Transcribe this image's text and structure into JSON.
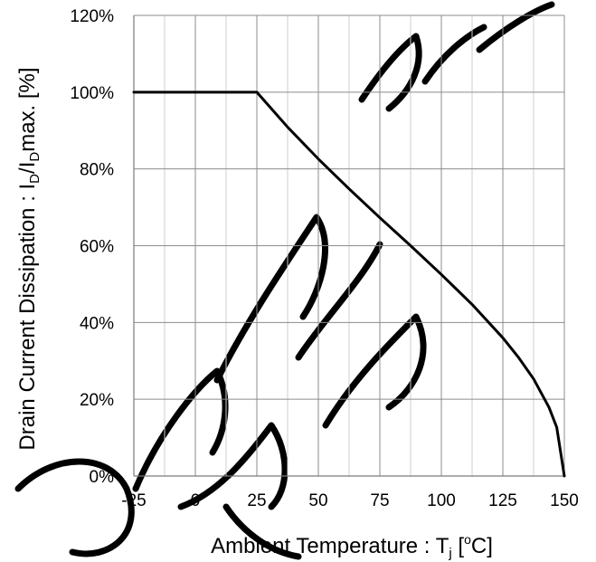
{
  "chart_data": {
    "type": "line",
    "title": "",
    "xlabel": "Ambient Temperature : Tj [°C]",
    "ylabel": "Drain Current Dissipation : ID/IDmax. [%]",
    "xlabel_parts": {
      "pre": "Ambient Temperature : T",
      "sub": "j",
      "post": " [",
      "sup": "o",
      "end": "C]"
    },
    "ylabel_parts": {
      "pre": "Drain Current Dissipation : I",
      "sub1": "D",
      "mid": "/I",
      "sub2": "D",
      "post": "max. [%]"
    },
    "xlim": [
      -25,
      150
    ],
    "ylim": [
      0,
      120
    ],
    "x_ticks": [
      -25,
      0,
      25,
      50,
      75,
      100,
      125,
      150
    ],
    "x_tick_labels": [
      "-25",
      "0",
      "25",
      "50",
      "75",
      "100",
      "125",
      "150"
    ],
    "y_ticks": [
      0,
      20,
      40,
      60,
      80,
      100,
      120
    ],
    "y_tick_labels": [
      "0%",
      "20%",
      "40%",
      "60%",
      "80%",
      "100%",
      "120%"
    ],
    "grid": true,
    "series": [
      {
        "x": [
          -25,
          0,
          25,
          37.5,
          50,
          62.5,
          75,
          87.5,
          100,
          112.5,
          125,
          131.25,
          137.5,
          143.75,
          146.9,
          150
        ],
        "y": [
          100,
          100,
          100,
          90.9,
          82.6,
          74.8,
          67.3,
          60.0,
          52.5,
          44.7,
          36.0,
          31.0,
          25.3,
          17.9,
          12.7,
          0
        ],
        "color": "#000000"
      }
    ]
  }
}
